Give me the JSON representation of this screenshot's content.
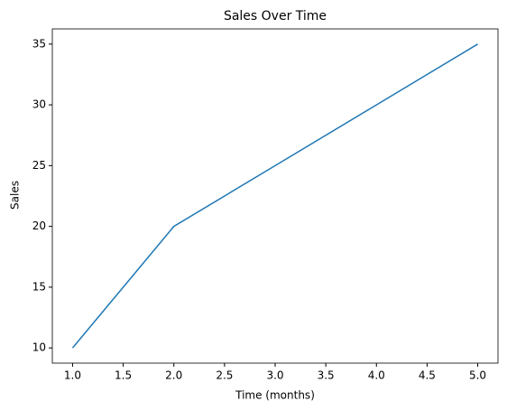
{
  "chart_data": {
    "type": "line",
    "title": "Sales Over Time",
    "xlabel": "Time (months)",
    "ylabel": "Sales",
    "x": [
      1,
      2,
      3,
      4,
      5
    ],
    "series": [
      {
        "name": "Sales",
        "color": "#1f77b4",
        "values": [
          10,
          20,
          25,
          30,
          35
        ]
      }
    ],
    "xlim": [
      0.8,
      5.2
    ],
    "ylim": [
      8.75,
      36.25
    ],
    "xticks": [
      {
        "value": 1,
        "label": "1.0"
      },
      1.5,
      {
        "value": 2,
        "label": "2.0"
      },
      2.5,
      {
        "value": 3,
        "label": "3.0"
      },
      3.5,
      {
        "value": 4,
        "label": "4.0"
      },
      4.5,
      {
        "value": 5,
        "label": "5.0"
      }
    ],
    "yticks": [
      10,
      15,
      20,
      25,
      30,
      35
    ]
  }
}
